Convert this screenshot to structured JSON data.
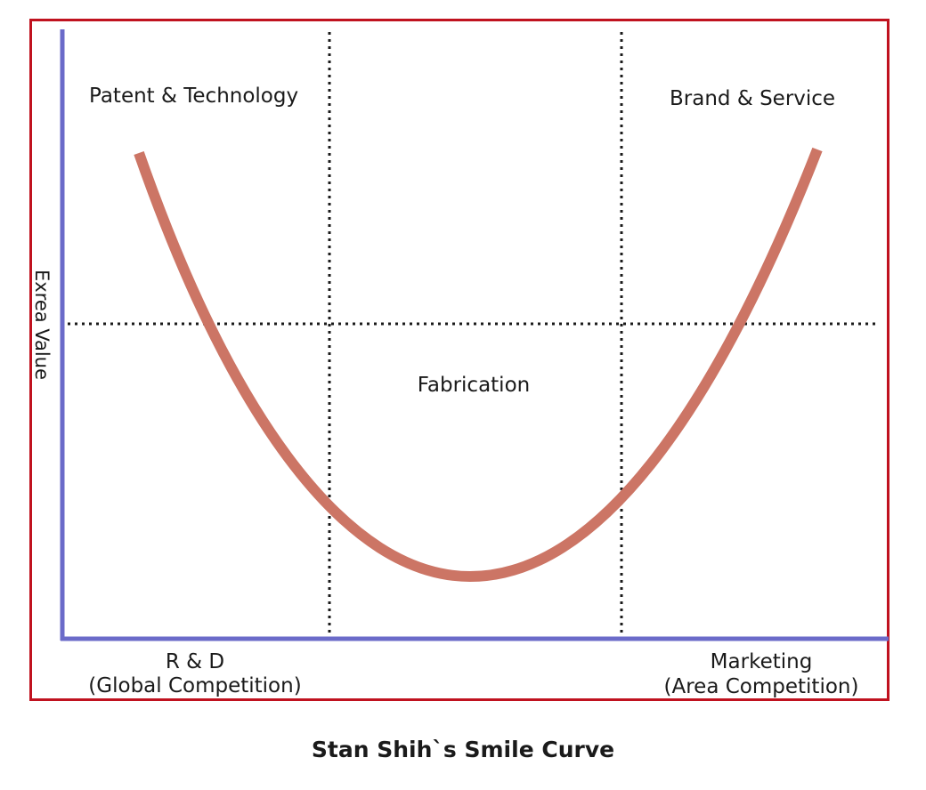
{
  "diagram": {
    "labels": {
      "top_left": "Patent & Technology",
      "top_right": "Brand & Service",
      "center": "Fabrication",
      "bottom_left_line1": "R & D",
      "bottom_left_line2": "(Global Competition)",
      "bottom_right_line1": "Marketing",
      "bottom_right_line2": "(Area Competition)",
      "y_axis": "Exrea Value"
    },
    "caption": "Stan Shih`s Smile Curve",
    "colors": {
      "frame": "#c0121f",
      "axis": "#6b6bc9",
      "curve": "#cc7565",
      "dotted": "#1a1a1a"
    }
  }
}
